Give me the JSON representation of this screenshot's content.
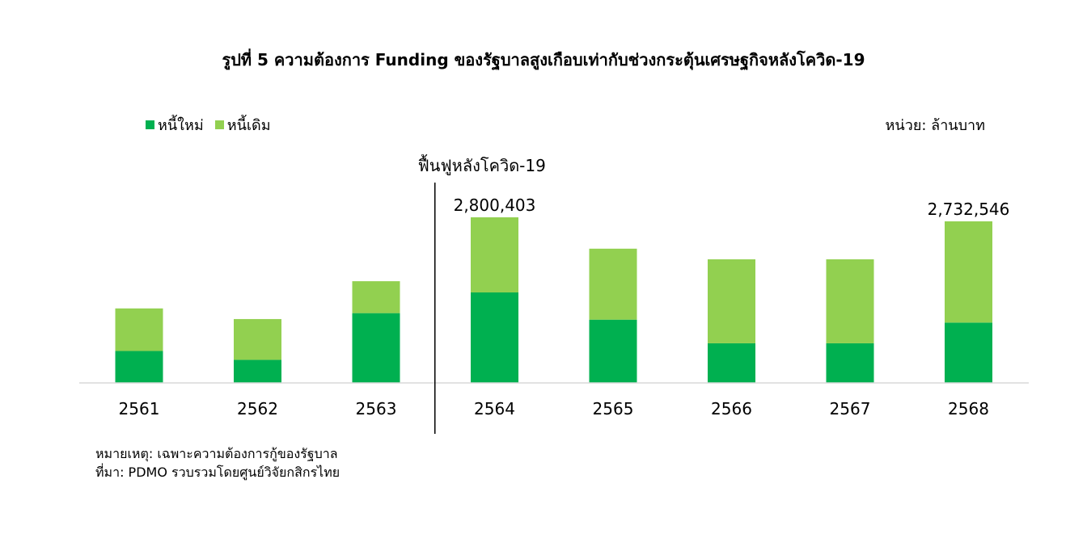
{
  "colors": {
    "new_debt": "#00b050",
    "old_debt": "#92d050",
    "axis": "#d9d9d9",
    "divider": "#000000"
  },
  "legend": {
    "new_debt_label": "หนี้ใหม่",
    "old_debt_label": "หนี้เดิม"
  },
  "unit": "หน่วย: ล้านบาท",
  "annotation": "ฟื้นฟูหลังโควิด-19",
  "footnote": {
    "note": "หมายเหตุ: เฉพาะความต้องการกู้ของรัฐบาล",
    "source": "ที่มา: PDMO รวบรวมโดยศูนย์วิจัยกสิกรไทย"
  },
  "chart_data": {
    "type": "bar",
    "stacked": true,
    "title": "รูปที่ 5 ความต้องการ Funding ของรัฐบาลสูงเกือบเท่ากับช่วงกระตุ้นเศรษฐกิจหลังโควิด-19",
    "categories": [
      "2561",
      "2562",
      "2563",
      "2564",
      "2565",
      "2566",
      "2567",
      "2568"
    ],
    "series": [
      {
        "name": "หนี้ใหม่",
        "values": [
          540000,
          390000,
          1180000,
          1530000,
          1070000,
          670000,
          670000,
          1020000
        ]
      },
      {
        "name": "หนี้เดิม",
        "values": [
          720000,
          690000,
          540000,
          1270403,
          1200000,
          1420000,
          1420000,
          1712546
        ]
      }
    ],
    "data_labels": {
      "3": "2,800,403",
      "7": "2,732,546"
    },
    "divider_after_category": "2563",
    "ylim": [
      0,
      2800403
    ],
    "grid": false
  }
}
